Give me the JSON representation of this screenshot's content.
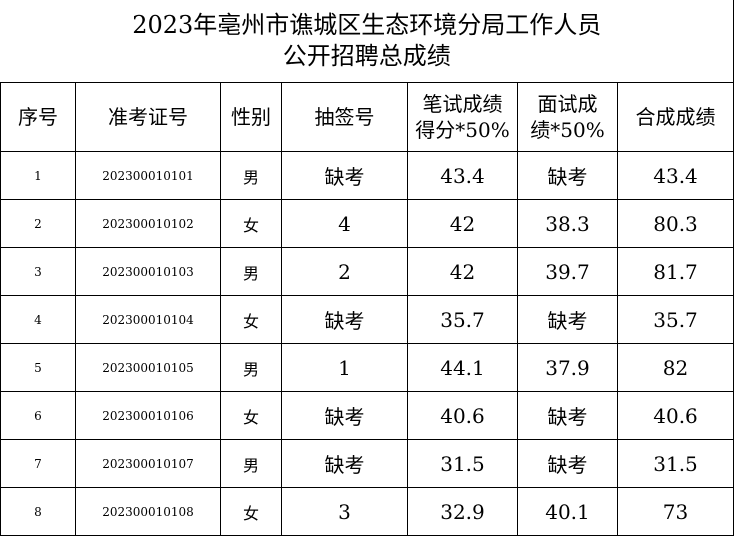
{
  "header": {
    "title": [
      "2023年亳州市谯城区生态环境分局工作人员",
      "公开招聘总成绩"
    ]
  },
  "table": {
    "columns": [
      "序号",
      "准考证号",
      "性别",
      "抽签号",
      "笔试成绩\n得分*50%",
      "面试成\n绩*50%",
      "合成成绩"
    ],
    "rows": [
      [
        1,
        "202300010101",
        "男",
        "缺考",
        43.4,
        "缺考",
        43.4
      ],
      [
        2,
        "202300010102",
        "女",
        4,
        42,
        38.3,
        80.3
      ],
      [
        3,
        "202300010103",
        "男",
        2,
        42,
        39.7,
        81.7
      ],
      [
        4,
        "202300010104",
        "女",
        "缺考",
        35.7,
        "缺考",
        35.7
      ],
      [
        5,
        "202300010105",
        "男",
        1,
        44.1,
        37.9,
        82
      ],
      [
        6,
        "202300010106",
        "女",
        "缺考",
        40.6,
        "缺考",
        40.6
      ],
      [
        7,
        "202300010107",
        "男",
        "缺考",
        31.5,
        "缺考",
        31.5
      ],
      [
        8,
        "202300010108",
        "女",
        3,
        32.9,
        40.1,
        73
      ]
    ]
  }
}
